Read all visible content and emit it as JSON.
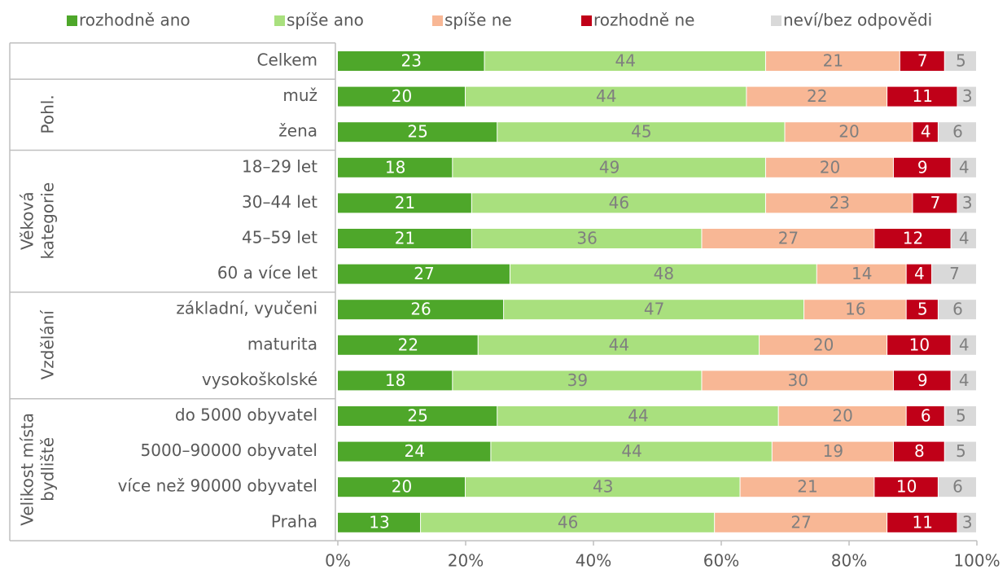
{
  "chart_data": {
    "type": "stacked_bar_horizontal",
    "groups": [
      {
        "categories": [
          "Celkem"
        ]
      },
      {
        "label": [
          "Pohl."
        ],
        "categories": [
          "muž",
          "žena"
        ]
      },
      {
        "label": [
          "Věková",
          "kategorie"
        ],
        "categories": [
          "18–29 let",
          "30–44 let",
          "45–59 let",
          "60 a více let"
        ]
      },
      {
        "label": [
          "Vzdělání"
        ],
        "categories": [
          "základní, vyučeni",
          "maturita",
          "vysokoškolské"
        ]
      },
      {
        "label": [
          "Velikost místa",
          "bydliště"
        ],
        "categories": [
          "do 5000 obyvatel",
          "5000–90000 obyvatel",
          "více než 90000 obyvatel",
          "Praha"
        ]
      }
    ],
    "series": [
      {
        "name": "rozhodně ano",
        "color": "#4ea72a",
        "label_color": "#ffffff",
        "values": [
          23,
          20,
          25,
          18,
          21,
          21,
          27,
          26,
          22,
          18,
          25,
          24,
          20,
          13
        ]
      },
      {
        "name": "spíše ano",
        "color": "#a9e07e",
        "label_color": "#7f7f7f",
        "values": [
          44,
          44,
          45,
          49,
          46,
          36,
          48,
          47,
          44,
          39,
          44,
          44,
          43,
          46
        ]
      },
      {
        "name": "spíše ne",
        "color": "#f8b795",
        "label_color": "#7f7f7f",
        "values": [
          21,
          22,
          20,
          20,
          23,
          27,
          14,
          16,
          20,
          30,
          20,
          19,
          21,
          27
        ]
      },
      {
        "name": "rozhodně ne",
        "color": "#c00018",
        "label_color": "#ffffff",
        "values": [
          7,
          11,
          4,
          9,
          7,
          12,
          4,
          5,
          10,
          9,
          6,
          8,
          10,
          11
        ]
      },
      {
        "name": "neví/bez odpovědi",
        "color": "#d9d9d9",
        "label_color": "#7f7f7f",
        "values": [
          5,
          3,
          6,
          4,
          3,
          4,
          7,
          6,
          4,
          4,
          5,
          5,
          6,
          3
        ]
      }
    ],
    "xlim": [
      0,
      100
    ],
    "xticks": [
      {
        "value": 0,
        "label": "0%"
      },
      {
        "value": 20,
        "label": "20%"
      },
      {
        "value": 40,
        "label": "40%"
      },
      {
        "value": 60,
        "label": "60%"
      },
      {
        "value": 80,
        "label": "80%"
      },
      {
        "value": 100,
        "label": "100%"
      }
    ]
  }
}
